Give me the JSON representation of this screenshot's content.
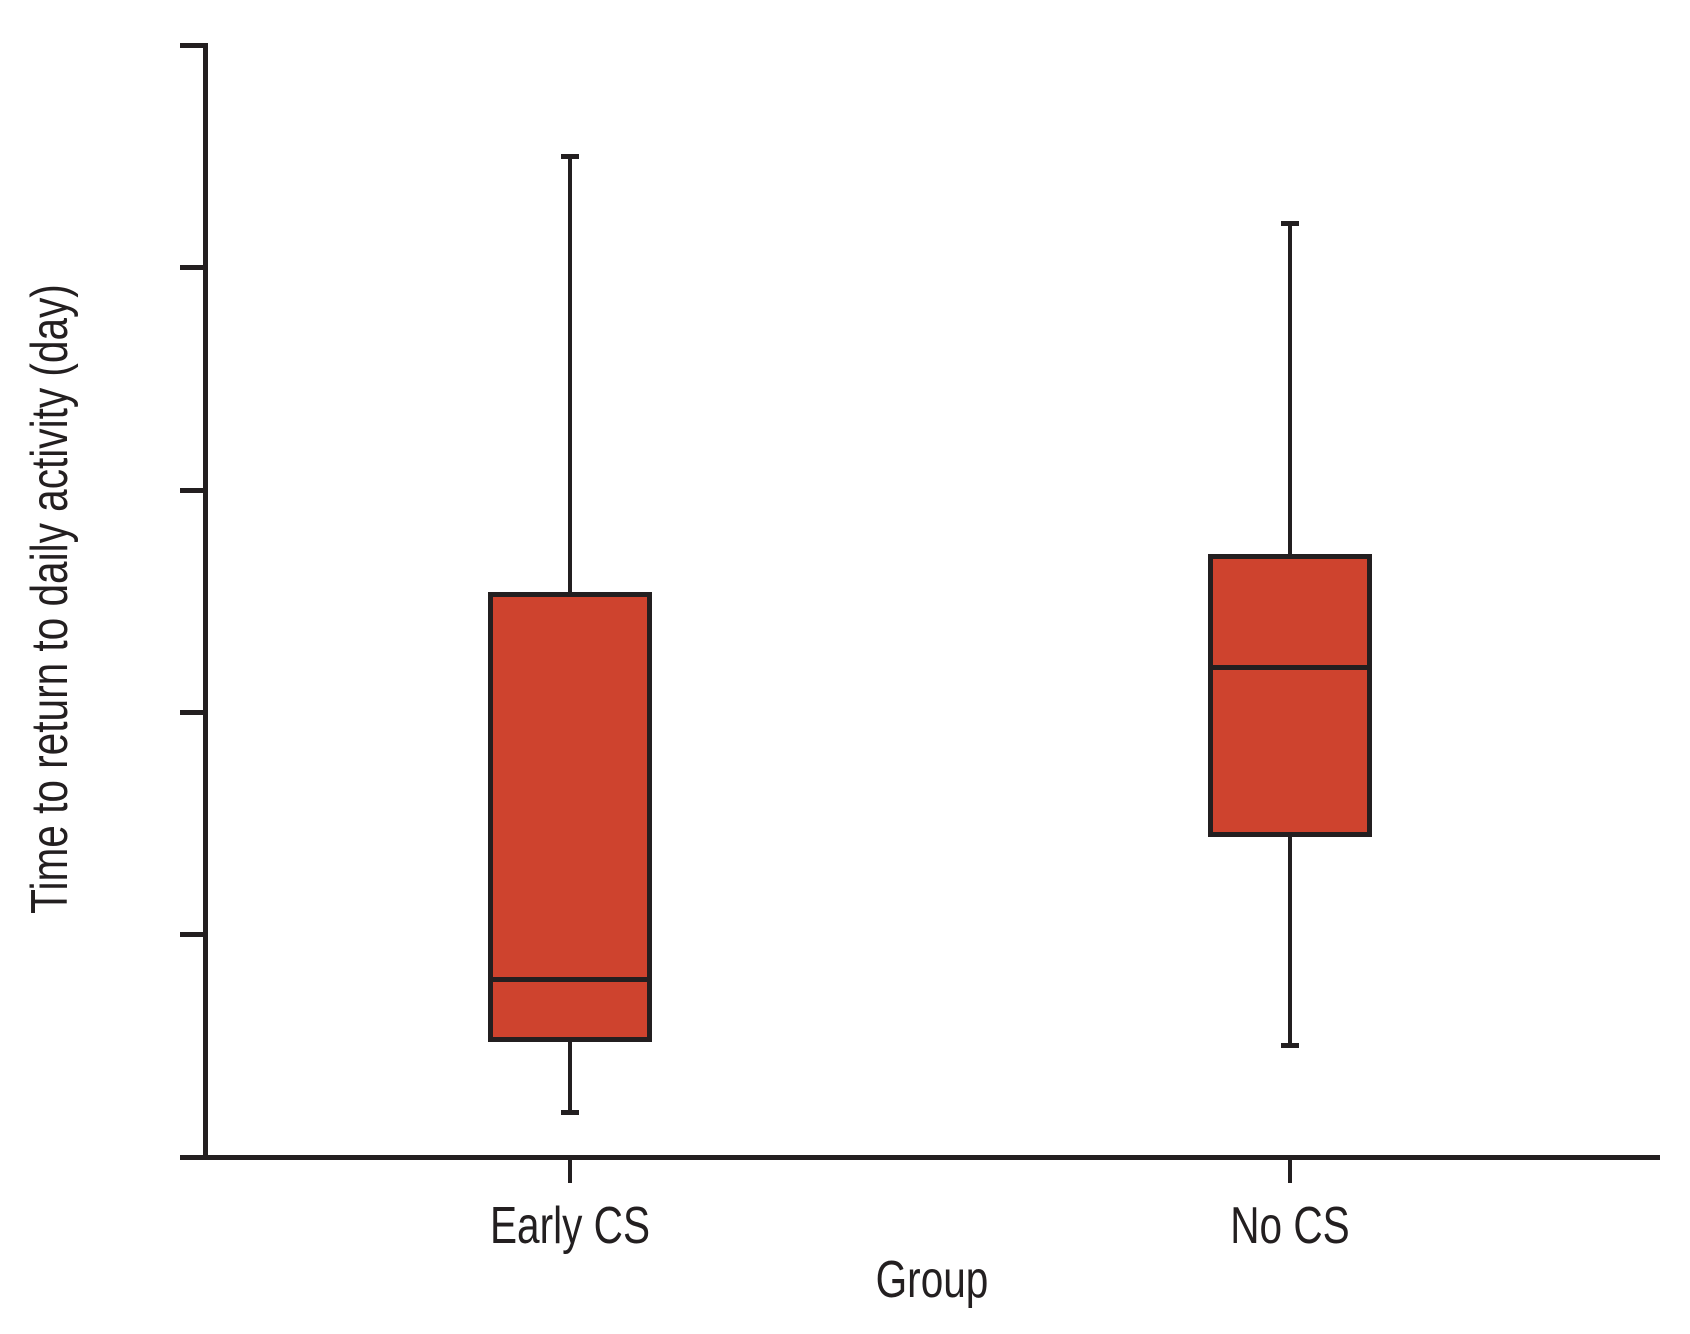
{
  "figure": {
    "background_color": "#ffffff",
    "text_color": "#231f20"
  },
  "chart_data": {
    "type": "boxplot",
    "title": "",
    "xlabel": "Group",
    "ylabel": "Time to return to daily activity (day)",
    "ylim": [
      0,
      50
    ],
    "yticks": [
      0,
      10,
      20,
      30,
      40,
      50
    ],
    "categories": [
      "Early CS",
      "No CS"
    ],
    "series": [
      {
        "name": "Early CS",
        "whisker_low": 2,
        "q1": 5.3,
        "median": 8,
        "q3": 25.3,
        "whisker_high": 45
      },
      {
        "name": "No CS",
        "whisker_low": 5,
        "q1": 14.5,
        "median": 22,
        "q3": 27,
        "whisker_high": 42
      }
    ],
    "grid": false,
    "legend_position": "none",
    "colors": {
      "box_fill": "#ce432e",
      "line": "#231f20",
      "text": "#231f20"
    }
  }
}
